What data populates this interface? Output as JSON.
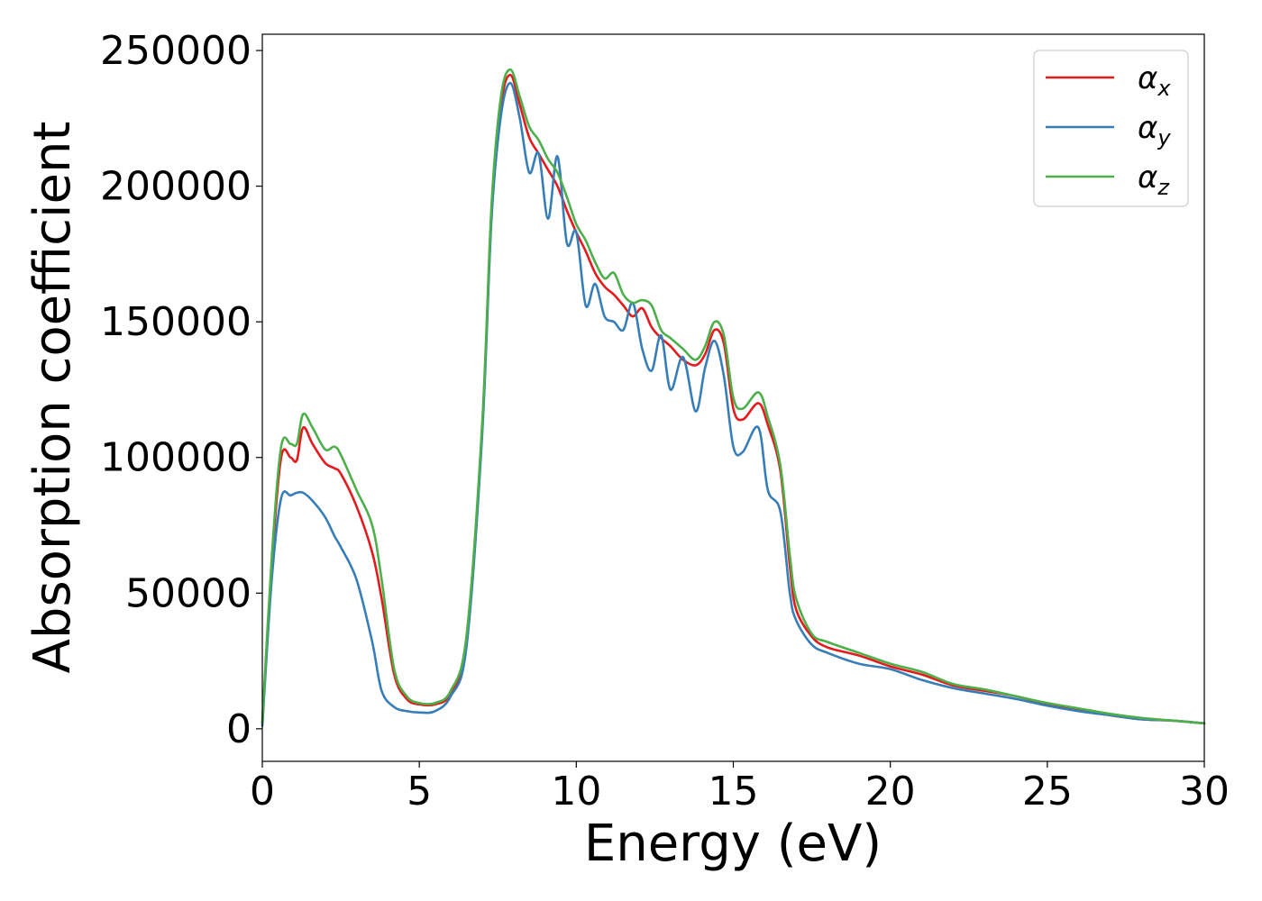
{
  "chart_data": {
    "type": "line",
    "title": "",
    "xlabel": "Energy (eV)",
    "ylabel": "Absorption coefficient",
    "xlim": [
      0,
      30
    ],
    "ylim": [
      -12000,
      256000
    ],
    "xticks": [
      0,
      5,
      10,
      15,
      20,
      25,
      30
    ],
    "yticks": [
      0,
      50000,
      100000,
      150000,
      200000,
      250000
    ],
    "grid": false,
    "legend": {
      "position": "top-right"
    },
    "series": [
      {
        "name": "α",
        "subscript": "x",
        "color": "#e41a1c",
        "x": [
          0,
          0.3,
          0.6,
          0.9,
          1.1,
          1.3,
          1.6,
          2.0,
          2.3,
          2.5,
          3.0,
          3.5,
          3.8,
          4.2,
          4.6,
          5.0,
          5.5,
          6.0,
          6.5,
          7.0,
          7.3,
          7.6,
          7.9,
          8.2,
          8.5,
          8.8,
          9.1,
          9.4,
          9.7,
          10.0,
          10.3,
          10.6,
          10.9,
          11.2,
          11.5,
          11.8,
          12.1,
          12.4,
          12.7,
          13.0,
          13.4,
          13.8,
          14.1,
          14.4,
          14.7,
          15.0,
          15.3,
          15.8,
          16.1,
          16.5,
          16.8,
          17.0,
          17.5,
          18.0,
          19.0,
          20.0,
          21.0,
          22.0,
          23.0,
          24.0,
          25.0,
          26.0,
          27.0,
          28.0,
          29.0,
          30.0
        ],
        "values": [
          2000,
          60000,
          100000,
          100000,
          99000,
          111000,
          105000,
          98000,
          96000,
          94000,
          82000,
          65000,
          48000,
          20000,
          11000,
          9000,
          9000,
          13000,
          32000,
          110000,
          190000,
          230000,
          241000,
          230000,
          218000,
          212000,
          206000,
          200000,
          191000,
          183000,
          176000,
          168000,
          163000,
          160000,
          156000,
          152000,
          155000,
          148000,
          144000,
          141000,
          136000,
          134000,
          138000,
          147000,
          142000,
          118000,
          114000,
          120000,
          112000,
          95000,
          60000,
          44000,
          34000,
          30000,
          27000,
          23000,
          20000,
          16000,
          14000,
          12000,
          9000,
          7000,
          5000,
          3500,
          3000,
          2000
        ]
      },
      {
        "name": "α",
        "subscript": "y",
        "color": "#377eb8",
        "x": [
          0,
          0.3,
          0.6,
          0.9,
          1.1,
          1.3,
          1.6,
          2.0,
          2.3,
          2.5,
          3.0,
          3.5,
          3.8,
          4.2,
          4.6,
          5.0,
          5.5,
          6.0,
          6.5,
          7.0,
          7.3,
          7.6,
          7.9,
          8.2,
          8.5,
          8.8,
          9.1,
          9.4,
          9.7,
          10.0,
          10.3,
          10.6,
          10.9,
          11.2,
          11.5,
          11.8,
          12.1,
          12.4,
          12.7,
          13.0,
          13.4,
          13.8,
          14.1,
          14.4,
          14.7,
          15.0,
          15.3,
          15.8,
          16.1,
          16.5,
          16.8,
          17.0,
          17.5,
          18.0,
          19.0,
          20.0,
          21.0,
          22.0,
          23.0,
          24.0,
          25.0,
          26.0,
          27.0,
          28.0,
          29.0,
          30.0
        ],
        "values": [
          1000,
          55000,
          85000,
          86000,
          87000,
          87000,
          84000,
          78000,
          71000,
          67000,
          55000,
          32000,
          14000,
          8000,
          6500,
          6000,
          6500,
          12000,
          30000,
          108000,
          188000,
          226000,
          238000,
          225000,
          205000,
          212000,
          188000,
          211000,
          179000,
          183000,
          156000,
          164000,
          152000,
          150000,
          147000,
          157000,
          140000,
          132000,
          145000,
          125000,
          137000,
          117000,
          133000,
          143000,
          130000,
          104000,
          102000,
          111000,
          88000,
          80000,
          50000,
          40000,
          31000,
          28000,
          24000,
          22000,
          18000,
          15000,
          13000,
          11000,
          8500,
          6500,
          5000,
          3500,
          3000,
          2000
        ]
      },
      {
        "name": "α",
        "subscript": "z",
        "color": "#4daf4a",
        "x": [
          0,
          0.3,
          0.6,
          0.9,
          1.1,
          1.3,
          1.6,
          2.0,
          2.3,
          2.5,
          3.0,
          3.5,
          3.8,
          4.2,
          4.6,
          5.0,
          5.5,
          6.0,
          6.5,
          7.0,
          7.3,
          7.6,
          7.9,
          8.2,
          8.5,
          8.8,
          9.1,
          9.4,
          9.7,
          10.0,
          10.3,
          10.6,
          10.9,
          11.2,
          11.5,
          11.8,
          12.1,
          12.4,
          12.7,
          13.0,
          13.4,
          13.8,
          14.1,
          14.4,
          14.7,
          15.0,
          15.3,
          15.8,
          16.1,
          16.5,
          16.8,
          17.0,
          17.5,
          18.0,
          19.0,
          20.0,
          21.0,
          22.0,
          23.0,
          24.0,
          25.0,
          26.0,
          27.0,
          28.0,
          29.0,
          30.0
        ],
        "values": [
          2500,
          63000,
          104000,
          105000,
          105000,
          116000,
          111000,
          103000,
          104000,
          101000,
          88000,
          75000,
          55000,
          22000,
          12000,
          9500,
          9500,
          14000,
          34000,
          112000,
          193000,
          233000,
          243000,
          233000,
          222000,
          217000,
          210000,
          205000,
          196000,
          186000,
          180000,
          172000,
          166000,
          168000,
          160000,
          157000,
          158000,
          156000,
          147000,
          144000,
          140000,
          136000,
          141000,
          150000,
          145000,
          122000,
          118000,
          124000,
          115000,
          97000,
          64000,
          48000,
          35000,
          32000,
          28000,
          24000,
          21000,
          16500,
          14500,
          12000,
          9500,
          7500,
          5500,
          4000,
          3000,
          2000
        ]
      }
    ]
  }
}
